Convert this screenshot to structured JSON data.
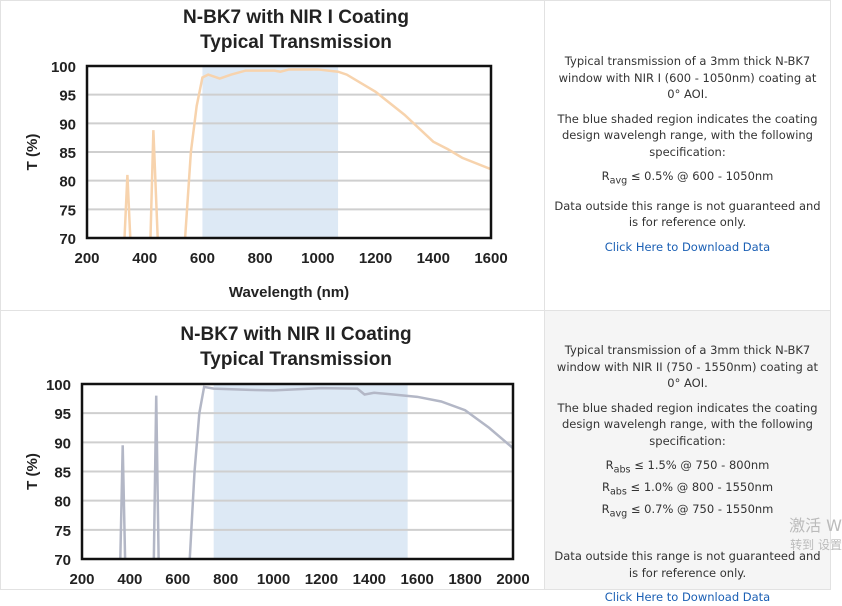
{
  "panels": [
    {
      "description": "Typical transmission of a 3mm thick N-BK7 window with NIR I (600 - 1050nm) coating at 0° AOI.",
      "shaded_note": "The blue shaded region indicates the coating design wavelengh range, with the following specification:",
      "specs": [
        {
          "symbol": "R",
          "sub": "avg",
          "text": "≤ 0.5% @ 600 - 1050nm"
        }
      ],
      "disclaimer": "Data outside this range is not guaranteed and is for reference only.",
      "download_link": "Click Here to Download Data"
    },
    {
      "description": "Typical transmission of a 3mm thick N-BK7 window with NIR II (750 - 1550nm) coating at 0° AOI.",
      "shaded_note": "The blue shaded region indicates the coating design wavelengh range, with the following specification:",
      "specs": [
        {
          "symbol": "R",
          "sub": "abs",
          "text": "≤ 1.5% @ 750 - 800nm"
        },
        {
          "symbol": "R",
          "sub": "abs",
          "text": "≤ 1.0% @ 800 - 1550nm"
        },
        {
          "symbol": "R",
          "sub": "avg",
          "text": "≤ 0.7% @ 750 - 1550nm"
        }
      ],
      "disclaimer": "Data outside this range is not guaranteed and is for reference only.",
      "download_link": "Click Here to Download Data"
    }
  ],
  "watermark": {
    "line1": "激活 W",
    "line2": "转到 设置"
  },
  "chart_data": [
    {
      "type": "line",
      "title": [
        "N-BK7 with NIR I Coating",
        "Typical Transmission"
      ],
      "xlabel": "Wavelength (nm)",
      "ylabel": "T (%)",
      "xlim": [
        200,
        1600
      ],
      "ylim": [
        70,
        100
      ],
      "xticks": [
        200,
        400,
        600,
        800,
        1000,
        1200,
        1400,
        1600
      ],
      "yticks": [
        70,
        75,
        80,
        85,
        90,
        95,
        100
      ],
      "grid": true,
      "shaded_range": [
        600,
        1070
      ],
      "shade_color": "#dde9f5",
      "line_color": "#f7d3ad",
      "segments": [
        [
          [
            330,
            70
          ],
          [
            340,
            81
          ],
          [
            350,
            70
          ]
        ],
        [
          [
            420,
            70
          ],
          [
            430,
            88.8
          ],
          [
            445,
            70
          ]
        ],
        [
          [
            540,
            70
          ],
          [
            560,
            85
          ],
          [
            580,
            93
          ],
          [
            600,
            98
          ],
          [
            620,
            98.5
          ],
          [
            660,
            97.8
          ],
          [
            700,
            98.5
          ],
          [
            750,
            99.2
          ],
          [
            850,
            99.2
          ],
          [
            870,
            99
          ],
          [
            900,
            99.4
          ],
          [
            1000,
            99.4
          ],
          [
            1070,
            99
          ],
          [
            1100,
            98.5
          ],
          [
            1200,
            95.5
          ],
          [
            1300,
            91.5
          ],
          [
            1400,
            86.8
          ],
          [
            1450,
            85.5
          ],
          [
            1500,
            84
          ],
          [
            1600,
            82
          ]
        ]
      ]
    },
    {
      "type": "line",
      "title": [
        "N-BK7 with NIR II Coating",
        "Typical Transmission"
      ],
      "xlabel": "",
      "ylabel": "T (%)",
      "xlim": [
        200,
        2000
      ],
      "ylim": [
        70,
        100
      ],
      "xticks": [
        200,
        400,
        600,
        800,
        1000,
        1200,
        1400,
        1600,
        1800,
        2000
      ],
      "yticks": [
        70,
        75,
        80,
        85,
        90,
        95,
        100
      ],
      "grid": true,
      "shaded_range": [
        750,
        1560
      ],
      "shade_color": "#dde9f5",
      "line_color": "#b3b7c6",
      "segments": [
        [
          [
            360,
            70
          ],
          [
            370,
            89.5
          ],
          [
            380,
            70
          ]
        ],
        [
          [
            500,
            70
          ],
          [
            510,
            98
          ],
          [
            520,
            70
          ]
        ],
        [
          [
            650,
            70
          ],
          [
            670,
            85
          ],
          [
            690,
            95
          ],
          [
            710,
            99.5
          ],
          [
            750,
            99.2
          ],
          [
            900,
            99
          ],
          [
            1000,
            98.9
          ],
          [
            1200,
            99.3
          ],
          [
            1350,
            99.2
          ],
          [
            1380,
            98.2
          ],
          [
            1420,
            98.5
          ],
          [
            1500,
            98.2
          ],
          [
            1600,
            97.8
          ],
          [
            1700,
            97
          ],
          [
            1800,
            95.5
          ],
          [
            1850,
            94
          ],
          [
            1900,
            92.5
          ],
          [
            2000,
            89
          ]
        ]
      ]
    }
  ]
}
